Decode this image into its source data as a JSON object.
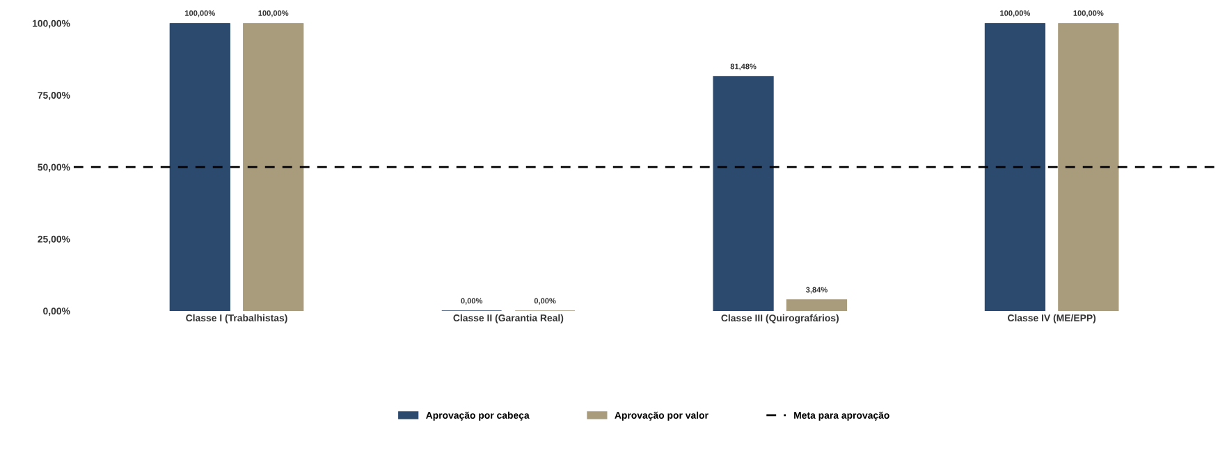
{
  "chart_data": {
    "type": "bar",
    "categories": [
      "Classe I (Trabalhistas)",
      "Classe II (Garantia Real)",
      "Classe III (Quirografários)",
      "Classe IV (ME/EPP)"
    ],
    "series": [
      {
        "name": "Aprovação por cabeça",
        "color": "#2c4a6e",
        "values": [
          100,
          0,
          81.48,
          100
        ],
        "value_labels": [
          "100,00%",
          "0,00%",
          "81,48%",
          "100,00%"
        ]
      },
      {
        "name": "Aprovação por valor",
        "color": "#a99c7c",
        "values": [
          100,
          0,
          3.84,
          100
        ],
        "value_labels": [
          "100,00%",
          "0,00%",
          "3,84%",
          "100,00%"
        ]
      }
    ],
    "ylim": [
      0,
      100
    ],
    "yticks": [
      {
        "value": 0,
        "label": "0,00%"
      },
      {
        "value": 25,
        "label": "25,00%"
      },
      {
        "value": 50,
        "label": "50,00%"
      },
      {
        "value": 75,
        "label": "75,00%"
      },
      {
        "value": 100,
        "label": "100,00%"
      }
    ],
    "ref_lines": [
      {
        "axis": "y",
        "value": 50,
        "label": "Meta para aprovação",
        "color": "#000000",
        "line_style": "dashed"
      }
    ],
    "grid": false,
    "legend": "bottom"
  }
}
